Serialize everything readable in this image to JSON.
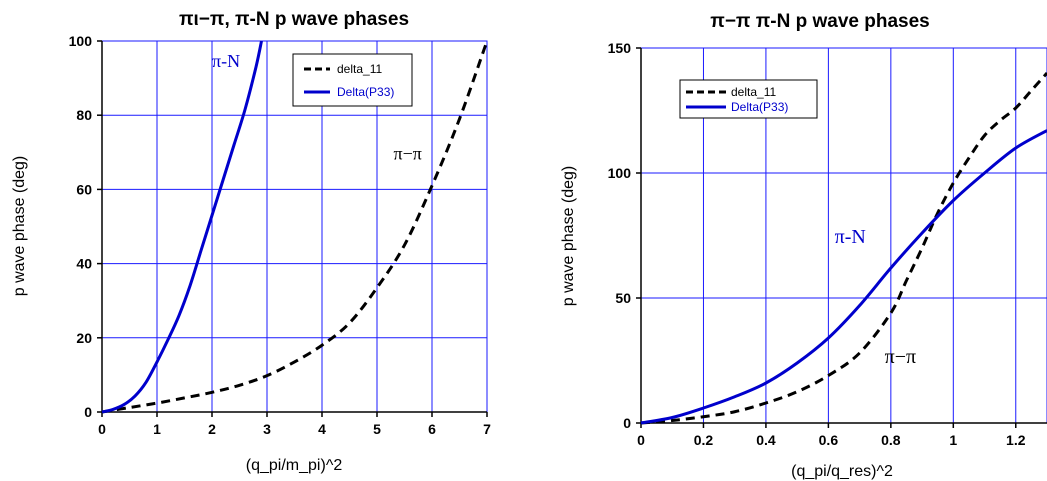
{
  "chart_data": [
    {
      "type": "line",
      "title": "πι−π, π-N p wave phases",
      "xlabel": "(q_pi/m_pi)^2",
      "ylabel": "p wave phase (deg)",
      "xlim": [
        0,
        7
      ],
      "ylim": [
        0,
        100
      ],
      "x_ticks": [
        "0",
        "1",
        "2",
        "3",
        "4",
        "5",
        "6",
        "7"
      ],
      "y_ticks": [
        "0",
        "20",
        "40",
        "60",
        "80",
        "100"
      ],
      "grid": true,
      "legend_position": "top-right",
      "series": [
        {
          "name": "delta_11",
          "color": "#000000",
          "style": "dashed",
          "x": [
            0,
            0.5,
            1,
            1.5,
            2,
            2.5,
            3,
            3.5,
            4,
            4.5,
            5,
            5.5,
            6,
            6.5,
            7
          ],
          "y": [
            0,
            1.2,
            2.4,
            3.8,
            5.3,
            7.2,
            9.8,
            13.5,
            18,
            24,
            33.5,
            45,
            61,
            79,
            100
          ]
        },
        {
          "name": "Delta(P33)",
          "color": "#0000cc",
          "style": "solid",
          "x": [
            0,
            0.2,
            0.4,
            0.6,
            0.8,
            1.0,
            1.2,
            1.4,
            1.6,
            1.8,
            2.0,
            2.2,
            2.4,
            2.6,
            2.8,
            2.9
          ],
          "y": [
            0,
            0.7,
            2,
            4.3,
            8,
            13.5,
            19.5,
            26,
            34,
            43.5,
            53,
            62.5,
            72,
            81.5,
            93,
            100
          ]
        }
      ],
      "annotations": [
        {
          "text": "π-N",
          "x": 2.0,
          "y": 93,
          "color": "#0000cc"
        },
        {
          "text": "π−π",
          "x": 5.3,
          "y": 68,
          "color": "#000000"
        }
      ]
    },
    {
      "type": "line",
      "title": "π−π   π-N    p wave phases",
      "xlabel": "(q_pi/q_res)^2",
      "ylabel": "p wave phase (deg)",
      "xlim": [
        0,
        1.3
      ],
      "ylim": [
        0,
        150
      ],
      "x_ticks": [
        "0",
        "0.2",
        "0.4",
        "0.6",
        "0.8",
        "1",
        "1.2"
      ],
      "y_ticks": [
        "0",
        "50",
        "100",
        "150"
      ],
      "grid": true,
      "legend_position": "top-left",
      "series": [
        {
          "name": "delta_11",
          "color": "#000000",
          "style": "dashed",
          "x": [
            0,
            0.1,
            0.2,
            0.3,
            0.4,
            0.5,
            0.6,
            0.7,
            0.8,
            0.85,
            0.9,
            0.95,
            1.0,
            1.05,
            1.1,
            1.15,
            1.2,
            1.25,
            1.3
          ],
          "y": [
            0,
            1,
            2.5,
            4.5,
            8,
            12.5,
            19,
            28,
            44,
            57,
            70,
            84,
            96,
            106,
            115,
            121,
            126,
            133,
            140
          ]
        },
        {
          "name": "Delta(P33)",
          "color": "#0000cc",
          "style": "solid",
          "x": [
            0,
            0.1,
            0.2,
            0.3,
            0.4,
            0.5,
            0.6,
            0.7,
            0.8,
            0.9,
            1.0,
            1.1,
            1.2,
            1.3
          ],
          "y": [
            0,
            2.2,
            6,
            10.5,
            16,
            24,
            34,
            47,
            62,
            76,
            89,
            100,
            110,
            117
          ]
        }
      ],
      "annotations": [
        {
          "text": "π-N",
          "x": 0.62,
          "y": 72,
          "color": "#0000cc"
        },
        {
          "text": "π−π",
          "x": 0.78,
          "y": 24,
          "color": "#000000"
        }
      ]
    }
  ]
}
